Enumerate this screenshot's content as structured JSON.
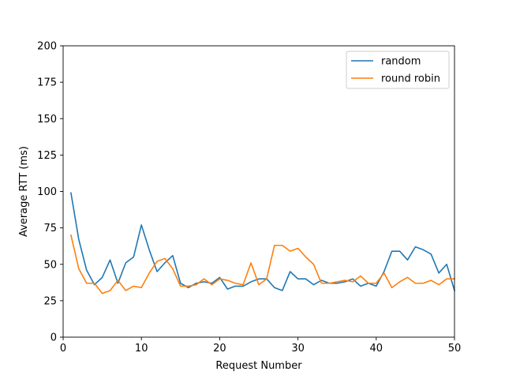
{
  "chart_data": {
    "type": "line",
    "title": "",
    "xlabel": "Request Number",
    "ylabel": "Average RTT (ms)",
    "xlim": [
      0,
      50
    ],
    "ylim": [
      0,
      200
    ],
    "xticks": [
      0,
      10,
      20,
      30,
      40,
      50
    ],
    "yticks": [
      0,
      25,
      50,
      75,
      100,
      125,
      150,
      175,
      200
    ],
    "grid": false,
    "legend_position": "top-right",
    "x": [
      1,
      2,
      3,
      4,
      5,
      6,
      7,
      8,
      9,
      10,
      11,
      12,
      13,
      14,
      15,
      16,
      17,
      18,
      19,
      20,
      21,
      22,
      23,
      24,
      25,
      26,
      27,
      28,
      29,
      30,
      31,
      32,
      33,
      34,
      35,
      36,
      37,
      38,
      39,
      40,
      41,
      42,
      43,
      44,
      45,
      46,
      47,
      48,
      49,
      50
    ],
    "series": [
      {
        "name": "random",
        "color": "#1f77b4",
        "values": [
          99,
          67,
          46,
          36,
          41,
          53,
          37,
          51,
          55,
          77,
          60,
          45,
          51,
          56,
          37,
          34,
          37,
          38,
          37,
          41,
          33,
          35,
          35,
          38,
          40,
          40,
          34,
          32,
          45,
          40,
          40,
          36,
          39,
          37,
          37,
          38,
          40,
          35,
          37,
          35,
          45,
          59,
          59,
          53,
          62,
          60,
          57,
          44,
          50,
          32
        ]
      },
      {
        "name": "round robin",
        "color": "#ff7f0e",
        "values": [
          70,
          47,
          37,
          37,
          30,
          32,
          39,
          32,
          35,
          34,
          44,
          52,
          54,
          47,
          35,
          35,
          36,
          40,
          36,
          40,
          39,
          37,
          36,
          51,
          36,
          40,
          63,
          63,
          59,
          61,
          55,
          50,
          37,
          37,
          38,
          39,
          38,
          42,
          37,
          37,
          44,
          34,
          38,
          41,
          37,
          37,
          39,
          36,
          40,
          40
        ]
      }
    ]
  }
}
